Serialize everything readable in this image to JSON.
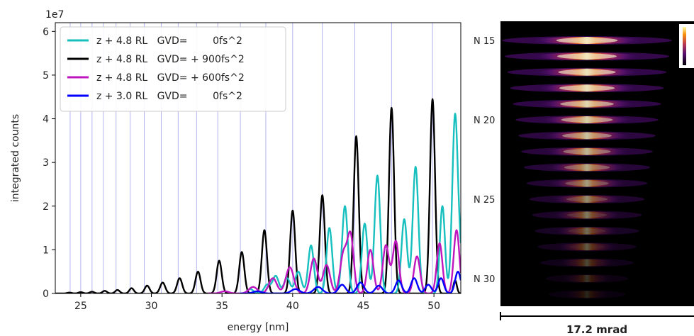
{
  "chart_data": [
    {
      "type": "line",
      "title": "",
      "xlabel": "energy [nm]",
      "ylabel": "integrated counts",
      "y_offset_label": "1e7",
      "xlim": [
        23.2,
        51.9
      ],
      "ylim": [
        0,
        6.2
      ],
      "xticks": [
        25,
        30,
        35,
        40,
        45,
        50
      ],
      "yticks": [
        0,
        1,
        2,
        3,
        4,
        5,
        6
      ],
      "grid": false,
      "legend_position": "upper-left",
      "harmonic_lines_x": [
        24.25,
        25.0,
        25.8,
        26.6,
        27.5,
        28.5,
        29.5,
        30.7,
        31.9,
        33.2,
        34.7,
        36.3,
        38.1,
        40.0,
        42.1,
        44.4,
        47.0,
        49.9
      ],
      "harmonic_line_color": "#b4b4f0",
      "series": [
        {
          "name": "z + 4.8 RL   GVD=        0fs^2",
          "color": "#17bfbf",
          "peaks": [
            {
              "x": 37.0,
              "y": 0.1,
              "w": 0.22
            },
            {
              "x": 38.2,
              "y": 0.2,
              "w": 0.22
            },
            {
              "x": 38.8,
              "y": 0.4,
              "w": 0.22
            },
            {
              "x": 39.6,
              "y": 0.35,
              "w": 0.22
            },
            {
              "x": 40.4,
              "y": 0.5,
              "w": 0.22
            },
            {
              "x": 41.3,
              "y": 1.1,
              "w": 0.2
            },
            {
              "x": 42.6,
              "y": 1.5,
              "w": 0.2
            },
            {
              "x": 43.7,
              "y": 2.0,
              "w": 0.2
            },
            {
              "x": 45.1,
              "y": 1.6,
              "w": 0.2
            },
            {
              "x": 46.0,
              "y": 2.7,
              "w": 0.2
            },
            {
              "x": 47.9,
              "y": 1.7,
              "w": 0.2
            },
            {
              "x": 48.7,
              "y": 2.9,
              "w": 0.2
            },
            {
              "x": 50.6,
              "y": 2.0,
              "w": 0.18
            },
            {
              "x": 51.5,
              "y": 4.1,
              "w": 0.2
            },
            {
              "x": 51.9,
              "y": 0.6,
              "w": 0.15
            }
          ]
        },
        {
          "name": "z + 4.8 RL   GVD= + 900fs^2",
          "color": "#000000",
          "peaks": [
            {
              "x": 24.2,
              "y": 0.02,
              "w": 0.16
            },
            {
              "x": 25.0,
              "y": 0.03,
              "w": 0.16
            },
            {
              "x": 25.8,
              "y": 0.04,
              "w": 0.16
            },
            {
              "x": 26.7,
              "y": 0.06,
              "w": 0.16
            },
            {
              "x": 27.6,
              "y": 0.08,
              "w": 0.16
            },
            {
              "x": 28.6,
              "y": 0.12,
              "w": 0.16
            },
            {
              "x": 29.7,
              "y": 0.18,
              "w": 0.17
            },
            {
              "x": 30.8,
              "y": 0.25,
              "w": 0.18
            },
            {
              "x": 32.0,
              "y": 0.35,
              "w": 0.18
            },
            {
              "x": 33.3,
              "y": 0.5,
              "w": 0.18
            },
            {
              "x": 34.8,
              "y": 0.75,
              "w": 0.18
            },
            {
              "x": 36.4,
              "y": 0.95,
              "w": 0.18
            },
            {
              "x": 38.0,
              "y": 1.45,
              "w": 0.18
            },
            {
              "x": 40.0,
              "y": 1.9,
              "w": 0.18
            },
            {
              "x": 42.1,
              "y": 2.25,
              "w": 0.18
            },
            {
              "x": 44.5,
              "y": 3.6,
              "w": 0.18
            },
            {
              "x": 47.0,
              "y": 4.25,
              "w": 0.18
            },
            {
              "x": 49.9,
              "y": 4.45,
              "w": 0.18
            },
            {
              "x": 51.5,
              "y": 0.3,
              "w": 0.12
            }
          ]
        },
        {
          "name": "z + 4.8 RL   GVD= + 600fs^2",
          "color": "#bf17bf",
          "peaks": [
            {
              "x": 35.2,
              "y": 0.05,
              "w": 0.3
            },
            {
              "x": 37.2,
              "y": 0.15,
              "w": 0.3
            },
            {
              "x": 38.6,
              "y": 0.35,
              "w": 0.28
            },
            {
              "x": 39.8,
              "y": 0.6,
              "w": 0.28
            },
            {
              "x": 41.5,
              "y": 0.8,
              "w": 0.25
            },
            {
              "x": 42.4,
              "y": 0.65,
              "w": 0.25
            },
            {
              "x": 43.6,
              "y": 0.9,
              "w": 0.24
            },
            {
              "x": 44.1,
              "y": 1.3,
              "w": 0.22
            },
            {
              "x": 45.5,
              "y": 1.0,
              "w": 0.22
            },
            {
              "x": 46.6,
              "y": 1.1,
              "w": 0.22
            },
            {
              "x": 47.3,
              "y": 1.2,
              "w": 0.22
            },
            {
              "x": 48.8,
              "y": 0.85,
              "w": 0.22
            },
            {
              "x": 50.4,
              "y": 1.15,
              "w": 0.2
            },
            {
              "x": 51.6,
              "y": 1.45,
              "w": 0.2
            }
          ]
        },
        {
          "name": "z + 3.0 RL   GVD=        0fs^2",
          "color": "#0000ff",
          "peaks": [
            {
              "x": 37.5,
              "y": 0.05,
              "w": 0.3
            },
            {
              "x": 40.2,
              "y": 0.1,
              "w": 0.3
            },
            {
              "x": 41.8,
              "y": 0.15,
              "w": 0.3
            },
            {
              "x": 43.5,
              "y": 0.2,
              "w": 0.25
            },
            {
              "x": 44.8,
              "y": 0.25,
              "w": 0.25
            },
            {
              "x": 46.1,
              "y": 0.18,
              "w": 0.25
            },
            {
              "x": 47.5,
              "y": 0.3,
              "w": 0.22
            },
            {
              "x": 48.6,
              "y": 0.35,
              "w": 0.22
            },
            {
              "x": 49.6,
              "y": 0.2,
              "w": 0.22
            },
            {
              "x": 50.5,
              "y": 0.35,
              "w": 0.2
            },
            {
              "x": 51.7,
              "y": 0.5,
              "w": 0.2
            }
          ]
        }
      ]
    },
    {
      "type": "heatmap",
      "title": "",
      "colormap": "inferno",
      "row_labels": [
        "N 15",
        "N 20",
        "N 25",
        "N 30"
      ],
      "scale_bar_label": "17.2 mrad",
      "harmonics": [
        {
          "n": 15,
          "brightness": 0.95,
          "width": 0.62
        },
        {
          "n": 16,
          "brightness": 0.95,
          "width": 0.6
        },
        {
          "n": 17,
          "brightness": 0.93,
          "width": 0.58
        },
        {
          "n": 18,
          "brightness": 0.92,
          "width": 0.56
        },
        {
          "n": 19,
          "brightness": 0.88,
          "width": 0.54
        },
        {
          "n": 20,
          "brightness": 0.85,
          "width": 0.52
        },
        {
          "n": 21,
          "brightness": 0.8,
          "width": 0.5
        },
        {
          "n": 22,
          "brightness": 0.75,
          "width": 0.48
        },
        {
          "n": 23,
          "brightness": 0.7,
          "width": 0.46
        },
        {
          "n": 24,
          "brightness": 0.65,
          "width": 0.44
        },
        {
          "n": 25,
          "brightness": 0.58,
          "width": 0.42
        },
        {
          "n": 26,
          "brightness": 0.5,
          "width": 0.4
        },
        {
          "n": 27,
          "brightness": 0.45,
          "width": 0.38
        },
        {
          "n": 28,
          "brightness": 0.38,
          "width": 0.36
        },
        {
          "n": 29,
          "brightness": 0.3,
          "width": 0.34
        },
        {
          "n": 30,
          "brightness": 0.22,
          "width": 0.3
        },
        {
          "n": 31,
          "brightness": 0.16,
          "width": 0.28
        }
      ]
    }
  ]
}
